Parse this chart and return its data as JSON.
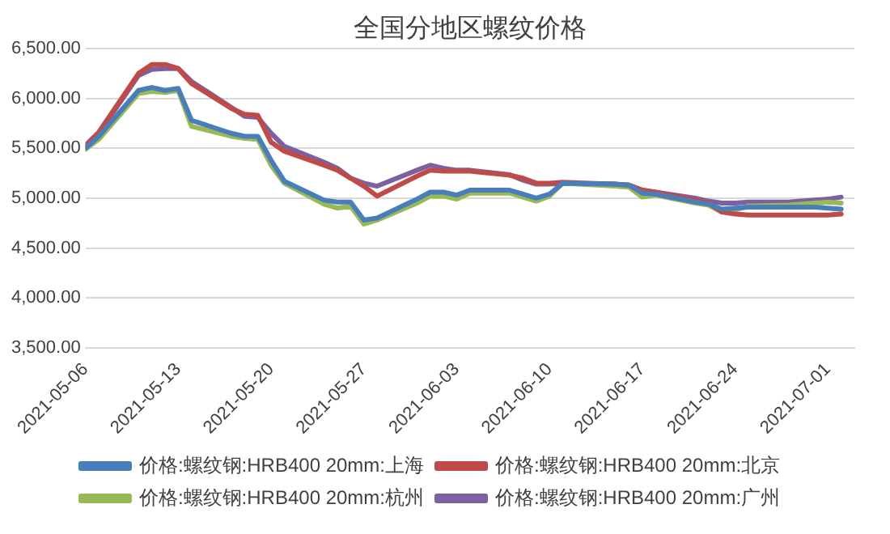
{
  "chart_data": {
    "type": "line",
    "title": "全国分地区螺纹价格",
    "x": [
      "2021-05-06",
      "2021-05-07",
      "2021-05-10",
      "2021-05-11",
      "2021-05-12",
      "2021-05-13",
      "2021-05-14",
      "2021-05-17",
      "2021-05-18",
      "2021-05-19",
      "2021-05-20",
      "2021-05-21",
      "2021-05-24",
      "2021-05-25",
      "2021-05-26",
      "2021-05-27",
      "2021-05-28",
      "2021-05-31",
      "2021-06-01",
      "2021-06-02",
      "2021-06-03",
      "2021-06-04",
      "2021-06-07",
      "2021-06-08",
      "2021-06-09",
      "2021-06-10",
      "2021-06-11",
      "2021-06-15",
      "2021-06-16",
      "2021-06-17",
      "2021-06-18",
      "2021-06-21",
      "2021-06-22",
      "2021-06-23",
      "2021-06-24",
      "2021-06-25",
      "2021-06-28",
      "2021-06-29",
      "2021-06-30",
      "2021-07-01",
      "2021-07-02"
    ],
    "series": [
      {
        "name": "价格:螺纹钢:HRB400 20mm:上海",
        "color": "#4a7ebb",
        "values": [
          5500,
          5620,
          6080,
          6110,
          6080,
          6100,
          5780,
          5650,
          5620,
          5620,
          5380,
          5170,
          4980,
          4960,
          4960,
          4780,
          4800,
          4990,
          5060,
          5060,
          5030,
          5080,
          5080,
          5040,
          5000,
          5040,
          5150,
          5140,
          5130,
          5050,
          5040,
          4960,
          4940,
          4890,
          4900,
          4910,
          4910,
          4910,
          4910,
          4900,
          4890
        ]
      },
      {
        "name": "价格:螺纹钢:HRB400 20mm:北京",
        "color": "#be4b48",
        "values": [
          5530,
          5660,
          6250,
          6340,
          6340,
          6300,
          6150,
          5900,
          5840,
          5830,
          5560,
          5470,
          5330,
          5280,
          5200,
          5120,
          5020,
          5220,
          5280,
          5270,
          5270,
          5270,
          5230,
          5200,
          5150,
          5150,
          5160,
          5140,
          5130,
          5080,
          5060,
          4980,
          4950,
          4860,
          4840,
          4830,
          4830,
          4830,
          4830,
          4830,
          4840
        ]
      },
      {
        "name": "价格:螺纹钢:HRB400 20mm:杭州",
        "color": "#98b954",
        "values": [
          5490,
          5590,
          6050,
          6070,
          6060,
          6080,
          5720,
          5620,
          5600,
          5590,
          5330,
          5150,
          4940,
          4900,
          4920,
          4740,
          4780,
          4950,
          5020,
          5020,
          4990,
          5050,
          5050,
          5010,
          4970,
          5020,
          5150,
          5120,
          5110,
          5010,
          5030,
          4950,
          4930,
          4860,
          4880,
          4920,
          4930,
          4940,
          4950,
          4960,
          4950
        ]
      },
      {
        "name": "价格:螺纹钢:HRB400 20mm:广州",
        "color": "#7d60a0",
        "values": [
          5510,
          5650,
          6230,
          6290,
          6300,
          6300,
          6170,
          5910,
          5820,
          5810,
          5650,
          5520,
          5360,
          5300,
          5200,
          5150,
          5120,
          5280,
          5330,
          5300,
          5280,
          5280,
          5235,
          5180,
          5140,
          5140,
          5150,
          5140,
          5130,
          5080,
          5060,
          5000,
          4970,
          4950,
          4950,
          4960,
          4960,
          4970,
          4980,
          4990,
          5010
        ]
      }
    ],
    "xlim": [
      "2021-05-06",
      "2021-07-03"
    ],
    "xticks": [
      "2021-05-06",
      "2021-05-13",
      "2021-05-20",
      "2021-05-27",
      "2021-06-03",
      "2021-06-10",
      "2021-06-17",
      "2021-06-24",
      "2021-07-01"
    ],
    "ylim": [
      3500,
      6500
    ],
    "yticks": [
      {
        "value": 3500,
        "label": "3,500.00"
      },
      {
        "value": 4000,
        "label": "4,000.00"
      },
      {
        "value": 4500,
        "label": "4,500.00"
      },
      {
        "value": 5000,
        "label": "5,000.00"
      },
      {
        "value": 5500,
        "label": "5,500.00"
      },
      {
        "value": 6000,
        "label": "6,000.00"
      },
      {
        "value": 6500,
        "label": "6,500.00"
      }
    ],
    "grid": "y",
    "legend": "bottom",
    "marker": "none",
    "line_style": "solid"
  }
}
